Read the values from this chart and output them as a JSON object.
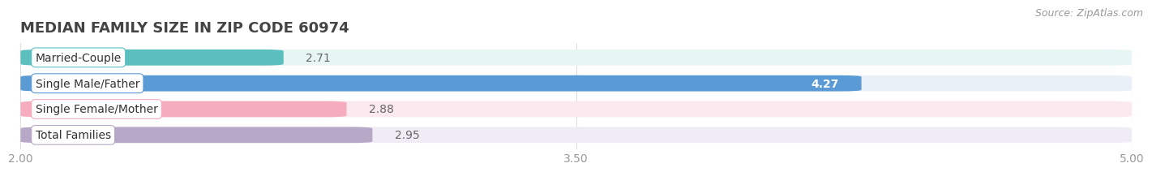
{
  "title": "MEDIAN FAMILY SIZE IN ZIP CODE 60974",
  "source": "Source: ZipAtlas.com",
  "categories": [
    "Married-Couple",
    "Single Male/Father",
    "Single Female/Mother",
    "Total Families"
  ],
  "values": [
    2.71,
    4.27,
    2.88,
    2.95
  ],
  "bar_colors": [
    "#5BBFBF",
    "#5B9BD5",
    "#F4ACBE",
    "#B8A8C8"
  ],
  "bar_bg_colors": [
    "#E8F5F5",
    "#EAF0F8",
    "#FCE8EF",
    "#F0ECF5"
  ],
  "label_pill_colors": [
    "#5BBFBF",
    "#5B9BD5",
    "#F4ACBE",
    "#B8A8C8"
  ],
  "xlim": [
    2.0,
    5.0
  ],
  "xticks": [
    2.0,
    3.5,
    5.0
  ],
  "label_inside": [
    false,
    true,
    false,
    false
  ],
  "label_color_inside": "#ffffff",
  "label_color_outside": "#666666",
  "title_fontsize": 13,
  "source_fontsize": 9,
  "bar_label_fontsize": 10,
  "cat_label_fontsize": 10,
  "tick_fontsize": 10,
  "background_color": "#ffffff",
  "bar_height": 0.62,
  "grid_color": "#dddddd"
}
